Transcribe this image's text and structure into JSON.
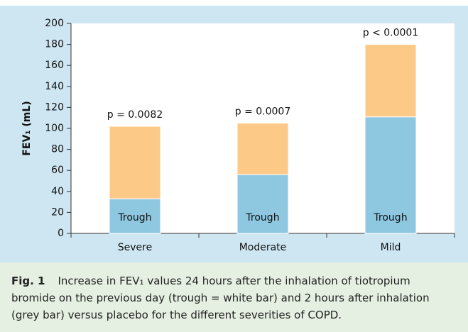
{
  "chart_data": {
    "type": "stacked-bar",
    "y_label": "FEV₁ (mL)",
    "categories": [
      "Severe",
      "Moderate",
      "Mild"
    ],
    "series": [
      {
        "name": "Trough",
        "color": "#8ec7e0",
        "values": [
          33,
          56,
          111
        ]
      },
      {
        "color": "#fdc987",
        "values": [
          69,
          49,
          69
        ]
      }
    ],
    "annotations": [
      "p = 0.0082",
      "p = 0.0007",
      "p < 0.0001"
    ],
    "ylim": [
      0,
      200
    ],
    "yticks": [
      0,
      20,
      40,
      60,
      80,
      100,
      120,
      140,
      160,
      180,
      200
    ],
    "background": "#cde6f2"
  },
  "caption": {
    "label": "Fig. 1",
    "text": "Increase in FEV₁ values 24 hours after the inhalation of tiotropium bromide on the previous day (trough = white bar) and 2 hours after inhalation (grey bar) versus placebo for the different severities of COPD."
  }
}
